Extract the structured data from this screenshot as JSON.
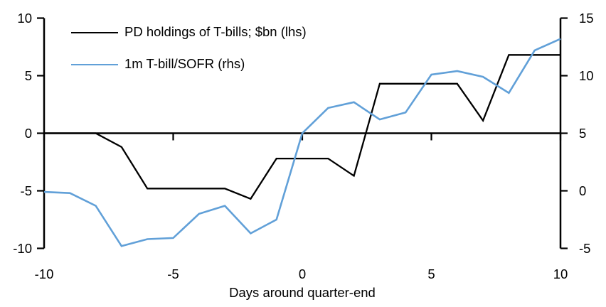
{
  "chart_data": {
    "type": "line",
    "title": "",
    "xlabel": "Days around quarter-end",
    "ylabel_left": "",
    "ylabel_right": "",
    "x": [
      -10,
      -9,
      -8,
      -7,
      -6,
      -5,
      -4,
      -3,
      -2,
      -1,
      0,
      1,
      2,
      3,
      4,
      5,
      6,
      7,
      8,
      9,
      10
    ],
    "x_ticks": [
      -10,
      -5,
      0,
      5,
      10
    ],
    "series": [
      {
        "name": "PD holdings of T-bills; $bn (lhs)",
        "axis": "left",
        "color": "#000000",
        "stroke_width": 2.3,
        "values": [
          0,
          0,
          0,
          -1.2,
          -4.8,
          -4.8,
          -4.8,
          -4.8,
          -5.7,
          -2.2,
          -2.2,
          -2.2,
          -3.7,
          4.3,
          4.3,
          4.3,
          4.3,
          1.1,
          6.8,
          6.8,
          6.8
        ]
      },
      {
        "name": "1m T-bill/SOFR (rhs)",
        "axis": "right",
        "color": "#61A0D8",
        "stroke_width": 2.6,
        "values": [
          -0.1,
          -0.2,
          -1.3,
          -4.8,
          -4.2,
          -4.1,
          -2.0,
          -1.3,
          -3.7,
          -2.5,
          5.0,
          7.2,
          7.7,
          6.2,
          6.8,
          10.1,
          10.4,
          9.9,
          8.5,
          12.2,
          13.2
        ]
      }
    ],
    "left_axis": {
      "min": -10,
      "max": 10,
      "ticks": [
        10,
        5,
        0,
        -5,
        -10
      ]
    },
    "right_axis": {
      "min": -5,
      "max": 15,
      "ticks": [
        15,
        10,
        5,
        0,
        -5
      ]
    },
    "grid": false,
    "legend_position": "top-left-inside",
    "axis_color": "#000000",
    "background": "#ffffff"
  }
}
